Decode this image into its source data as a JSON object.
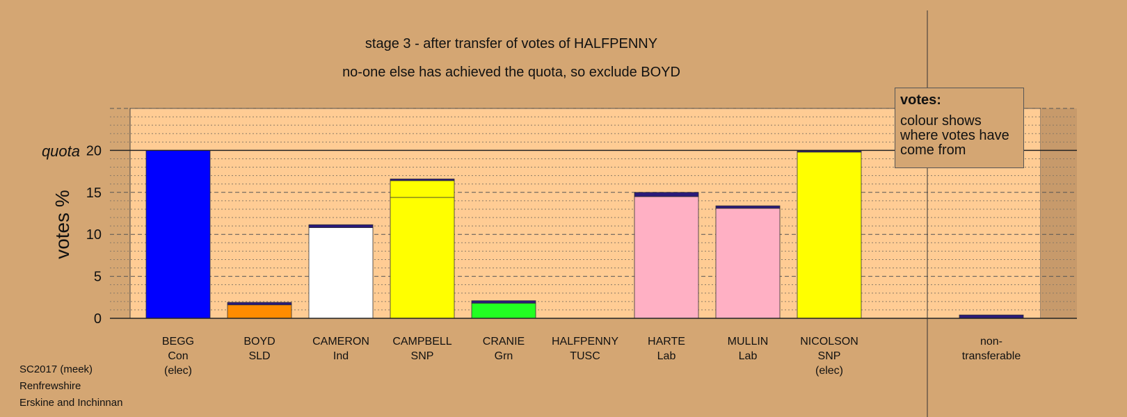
{
  "title": "stage 3 - after transfer of votes of HALFPENNY",
  "subtitle": "no-one else has achieved the quota, so exclude BOYD",
  "legend": {
    "title": "votes:",
    "text": "colour shows where votes have come from"
  },
  "footer": [
    "SC2017 (meek)",
    "Renfrewshire",
    "Erskine and Inchinnan"
  ],
  "colors": {
    "background": "#d4a673",
    "plot_background": "#ffcc94",
    "Con": "#0000ff",
    "SLD": "#ff8c00",
    "Ind": "#ffffff",
    "SNP": "#ffff00",
    "Grn": "#22ff22",
    "Lab": "#ffb0c4",
    "TUSC": "#cc0000",
    "transfer": "#2a1a7a"
  },
  "chart_data": {
    "type": "bar",
    "stacked": true,
    "ylabel": "votes %",
    "quota_label": "quota",
    "quota": 20,
    "ylim": [
      0,
      25
    ],
    "yticks": [
      0,
      5,
      10,
      15,
      20
    ],
    "grid": true,
    "categories": [
      {
        "lines": [
          "BEGG",
          "Con",
          "(elec)"
        ],
        "segments": [
          {
            "value": 20.0,
            "color": "#0000ff"
          }
        ]
      },
      {
        "lines": [
          "BOYD",
          "SLD"
        ],
        "segments": [
          {
            "value": 1.6,
            "color": "#ff8c00"
          },
          {
            "value": 0.3,
            "color": "#2a1a7a"
          }
        ]
      },
      {
        "lines": [
          "CAMERON",
          "Ind"
        ],
        "segments": [
          {
            "value": 10.8,
            "color": "#ffffff"
          },
          {
            "value": 0.35,
            "color": "#2a1a7a"
          }
        ]
      },
      {
        "lines": [
          "CAMPBELL",
          "SNP"
        ],
        "segments": [
          {
            "value": 14.4,
            "color": "#ffff00"
          },
          {
            "value": 2.0,
            "color": "#ffff00"
          },
          {
            "value": 0.2,
            "color": "#2a1a7a"
          }
        ]
      },
      {
        "lines": [
          "CRANIE",
          "Grn"
        ],
        "segments": [
          {
            "value": 1.8,
            "color": "#22ff22"
          },
          {
            "value": 0.3,
            "color": "#2a1a7a"
          }
        ]
      },
      {
        "lines": [
          "HALFPENNY",
          "TUSC"
        ],
        "segments": []
      },
      {
        "lines": [
          "HARTE",
          "Lab"
        ],
        "segments": [
          {
            "value": 14.5,
            "color": "#ffb0c4"
          },
          {
            "value": 0.5,
            "color": "#2a1a7a"
          }
        ]
      },
      {
        "lines": [
          "MULLIN",
          "Lab"
        ],
        "segments": [
          {
            "value": 13.1,
            "color": "#ffb0c4"
          },
          {
            "value": 0.3,
            "color": "#2a1a7a"
          }
        ]
      },
      {
        "lines": [
          "NICOLSON",
          "SNP",
          "(elec)"
        ],
        "segments": [
          {
            "value": 19.8,
            "color": "#ffff00"
          },
          {
            "value": 0.15,
            "color": "#2a1a7a"
          }
        ]
      },
      {
        "lines": [
          "non-",
          "transferable"
        ],
        "segments": [
          {
            "value": 0.4,
            "color": "#2a1a7a"
          }
        ]
      }
    ]
  }
}
